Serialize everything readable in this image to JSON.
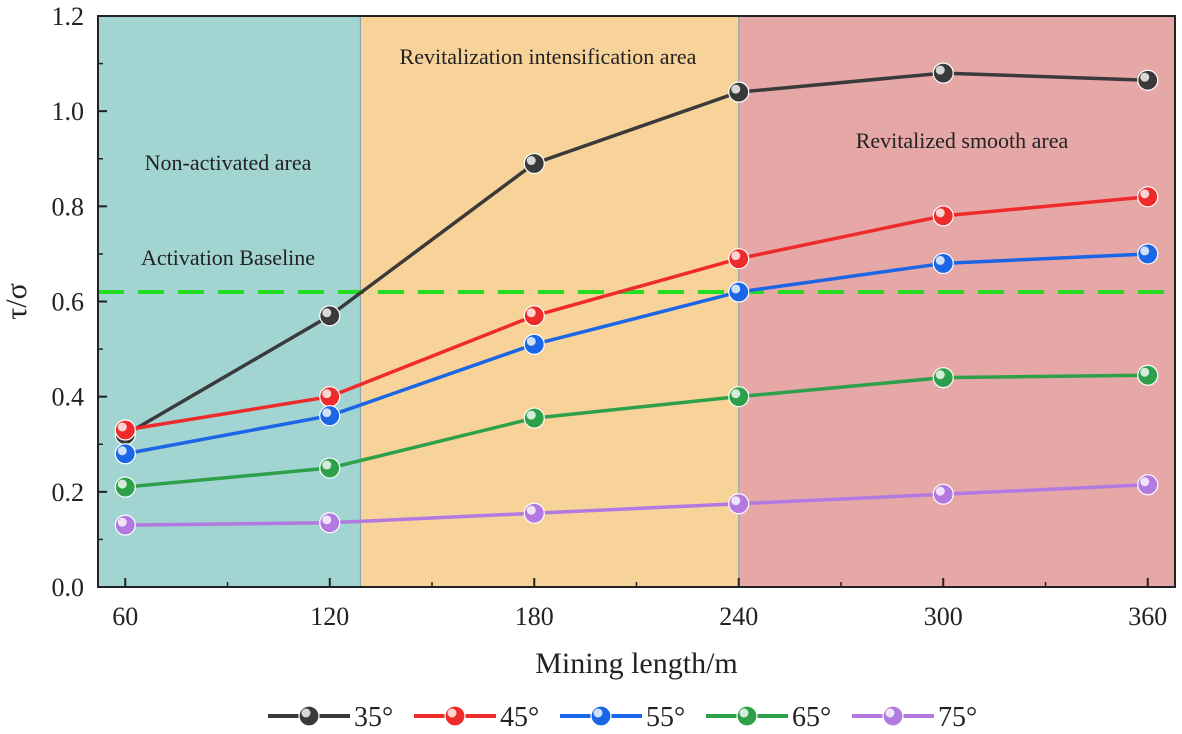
{
  "chart_data": {
    "type": "line",
    "xlabel": "Mining length/m",
    "ylabel": "τ/σ",
    "xlim": [
      52,
      368
    ],
    "ylim": [
      0,
      1.2
    ],
    "x_ticks": [
      60,
      120,
      180,
      240,
      300,
      360
    ],
    "y_ticks": [
      0.0,
      0.2,
      0.4,
      0.6,
      0.8,
      1.0,
      1.2
    ],
    "x_tick_labels": [
      "60",
      "120",
      "180",
      "240",
      "300",
      "360"
    ],
    "y_tick_labels": [
      "0.0",
      "0.2",
      "0.4",
      "0.6",
      "0.8",
      "1.0",
      "1.2"
    ],
    "x": [
      60,
      120,
      180,
      240,
      300,
      360
    ],
    "series": [
      {
        "name": "35°",
        "color": "#3a3a3a",
        "values": [
          0.32,
          0.57,
          0.89,
          1.04,
          1.08,
          1.065
        ]
      },
      {
        "name": "45°",
        "color": "#ee2a2a",
        "values": [
          0.33,
          0.4,
          0.57,
          0.69,
          0.78,
          0.82
        ]
      },
      {
        "name": "55°",
        "color": "#1a66e6",
        "values": [
          0.28,
          0.36,
          0.51,
          0.62,
          0.68,
          0.7
        ]
      },
      {
        "name": "65°",
        "color": "#2ea04a",
        "values": [
          0.21,
          0.25,
          0.355,
          0.4,
          0.44,
          0.445
        ]
      },
      {
        "name": "75°",
        "color": "#b27ae0",
        "values": [
          0.13,
          0.135,
          0.155,
          0.175,
          0.195,
          0.215
        ]
      }
    ],
    "regions": [
      {
        "label": "Non-activated area",
        "x_start": 52,
        "x_end": 129,
        "color": "#a2d4d2"
      },
      {
        "label": "Revitalization intensification area",
        "x_start": 129,
        "x_end": 240,
        "color": "#f7d39a"
      },
      {
        "label": "Revitalized smooth area",
        "x_start": 240,
        "x_end": 368,
        "color": "#e6a7a7"
      }
    ],
    "baseline": {
      "label": "Activation Baseline",
      "value": 0.62,
      "color": "#22dd22"
    },
    "legend_position": "bottom",
    "grid": false
  }
}
